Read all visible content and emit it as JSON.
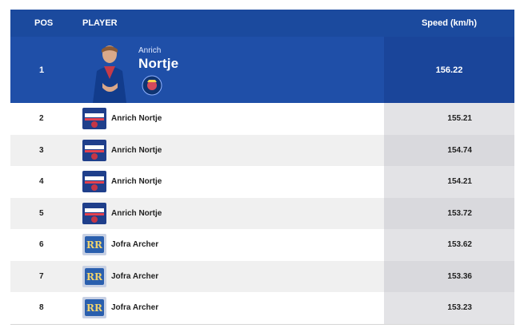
{
  "header": {
    "pos_label": "POS",
    "player_label": "PLAYER",
    "speed_label": "Speed (km/h)"
  },
  "top": {
    "pos": "1",
    "first_name": "Anrich",
    "last_name": "Nortje",
    "speed": "156.22",
    "team_icon": "delhi-capitals-logo"
  },
  "rows": [
    {
      "pos": "2",
      "player": "Anrich Nortje",
      "speed": "155.21",
      "team_icon": "delhi-capitals-logo"
    },
    {
      "pos": "3",
      "player": "Anrich Nortje",
      "speed": "154.74",
      "team_icon": "delhi-capitals-logo"
    },
    {
      "pos": "4",
      "player": "Anrich Nortje",
      "speed": "154.21",
      "team_icon": "delhi-capitals-logo"
    },
    {
      "pos": "5",
      "player": "Anrich Nortje",
      "speed": "153.72",
      "team_icon": "delhi-capitals-logo"
    },
    {
      "pos": "6",
      "player": "Jofra Archer",
      "speed": "153.62",
      "team_icon": "rajasthan-royals-logo"
    },
    {
      "pos": "7",
      "player": "Jofra Archer",
      "speed": "153.36",
      "team_icon": "rajasthan-royals-logo"
    },
    {
      "pos": "8",
      "player": "Jofra Archer",
      "speed": "153.23",
      "team_icon": "rajasthan-royals-logo"
    }
  ],
  "colors": {
    "header_blue": "#1b4a9e",
    "top_row_blue": "#1f4fa8"
  }
}
